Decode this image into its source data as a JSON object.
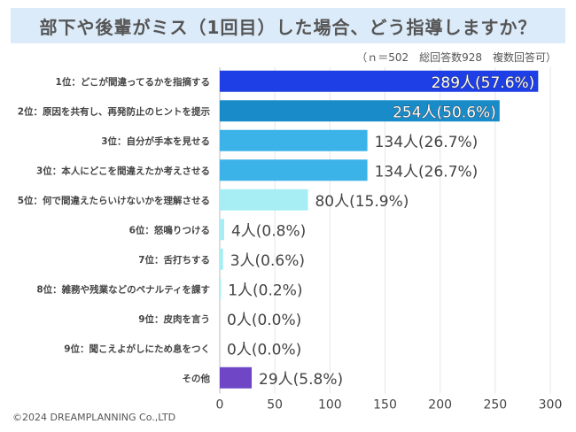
{
  "chart_data": {
    "type": "bar",
    "orientation": "horizontal",
    "title": "部下や後輩がミス（1回目）した場合、どう指導しますか？",
    "note": "（ｎ＝502　総回答数928　複数回答可）",
    "categories": [
      "1位：どこが間違ってるかを指摘する",
      "2位：原因を共有し、再発防止のヒントを提示",
      "3位：自分が手本を見せる",
      "3位：本人にどこを間違えたか考えさせる",
      "5位：何で間違えたらいけないかを理解させる",
      "6位：怒鳴りつける",
      "7位：舌打ちする",
      "8位：雑務や残業などのペナルティを課す",
      "9位：皮肉を言う",
      "9位：聞こえよがしにため息をつく",
      "その他"
    ],
    "values": [
      289,
      254,
      134,
      134,
      80,
      4,
      3,
      1,
      0,
      0,
      29
    ],
    "data_labels": [
      "289人(57.6%)",
      "254人(50.6%)",
      "134人(26.7%)",
      "134人(26.7%)",
      "80人(15.9%)",
      "4人(0.8%)",
      "3人(0.6%)",
      "1人(0.2%)",
      "0人(0.0%)",
      "0人(0.0%)",
      "29人(5.8%)"
    ],
    "colors": [
      "#1e3ee6",
      "#1a8bc9",
      "#3bb2e8",
      "#3bb2e8",
      "#a6edf4",
      "#a6edf4",
      "#a6edf4",
      "#a6edf4",
      "#a6edf4",
      "#a6edf4",
      "#6f47c6"
    ],
    "xlim": [
      0,
      300
    ],
    "xticks": [
      "0",
      "50",
      "100",
      "150",
      "200",
      "250",
      "300"
    ],
    "grid": true,
    "xlabel": "",
    "ylabel": ""
  },
  "footer": {
    "copyright": "©2024 DREAMPLANNING Co.,LTD"
  }
}
